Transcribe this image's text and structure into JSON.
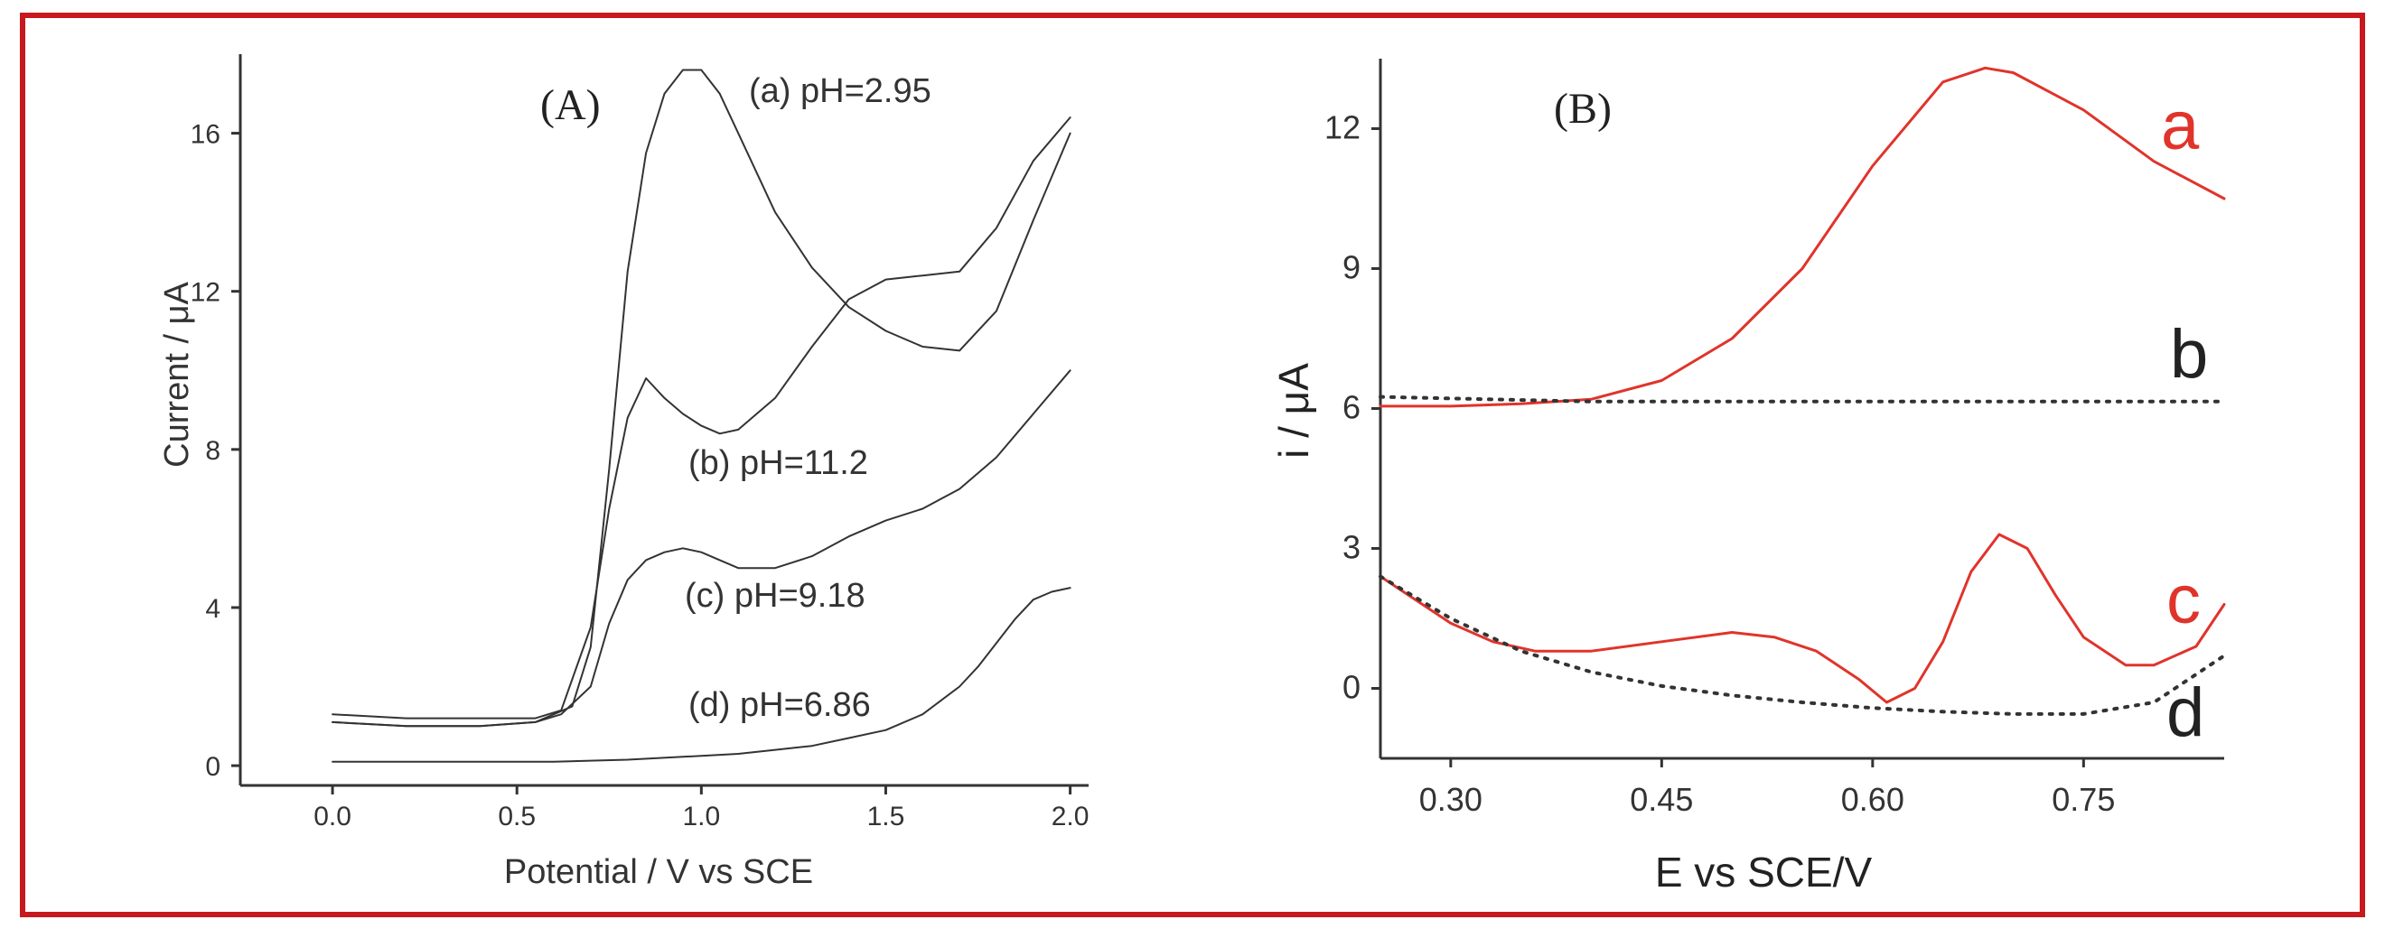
{
  "chart_data": [
    {
      "type": "line",
      "panel_label": "(A)",
      "xlabel": "Potential / V vs SCE",
      "ylabel": "Current / μA",
      "xlim": [
        -0.25,
        2.05
      ],
      "ylim": [
        -0.5,
        18
      ],
      "xticks": [
        "0.0",
        "0.5",
        "1.0",
        "1.5",
        "2.0"
      ],
      "yticks": [
        "0",
        "4",
        "8",
        "12",
        "16"
      ],
      "series": [
        {
          "name": "(a) pH=2.95",
          "color": "#333333",
          "style": "solid",
          "x": [
            0.0,
            0.2,
            0.4,
            0.55,
            0.65,
            0.7,
            0.75,
            0.8,
            0.85,
            0.9,
            0.95,
            1.0,
            1.05,
            1.1,
            1.2,
            1.3,
            1.4,
            1.5,
            1.6,
            1.7,
            1.8,
            1.9,
            2.0
          ],
          "y": [
            1.1,
            1.0,
            1.0,
            1.1,
            1.5,
            3.0,
            7.5,
            12.5,
            15.5,
            17.0,
            17.6,
            17.6,
            17.0,
            16.0,
            14.0,
            12.6,
            11.6,
            11.0,
            10.6,
            10.5,
            11.5,
            13.8,
            16.0
          ]
        },
        {
          "name": "(b) pH=11.2",
          "color": "#333333",
          "style": "solid",
          "x": [
            0.0,
            0.2,
            0.4,
            0.55,
            0.62,
            0.7,
            0.75,
            0.8,
            0.85,
            0.9,
            0.95,
            1.0,
            1.05,
            1.1,
            1.2,
            1.3,
            1.4,
            1.5,
            1.6,
            1.7,
            1.8,
            1.9,
            2.0
          ],
          "y": [
            1.3,
            1.2,
            1.2,
            1.2,
            1.4,
            3.5,
            6.5,
            8.8,
            9.8,
            9.3,
            8.9,
            8.6,
            8.4,
            8.5,
            9.3,
            10.6,
            11.8,
            12.3,
            12.4,
            12.5,
            13.6,
            15.3,
            16.4
          ]
        },
        {
          "name": "(c) pH=9.18",
          "color": "#333333",
          "style": "solid",
          "x": [
            0.0,
            0.2,
            0.4,
            0.55,
            0.62,
            0.7,
            0.75,
            0.8,
            0.85,
            0.9,
            0.95,
            1.0,
            1.05,
            1.1,
            1.2,
            1.3,
            1.4,
            1.5,
            1.6,
            1.7,
            1.8,
            1.9,
            2.0
          ],
          "y": [
            1.1,
            1.0,
            1.0,
            1.1,
            1.3,
            2.0,
            3.6,
            4.7,
            5.2,
            5.4,
            5.5,
            5.4,
            5.2,
            5.0,
            5.0,
            5.3,
            5.8,
            6.2,
            6.5,
            7.0,
            7.8,
            8.9,
            10.0
          ]
        },
        {
          "name": "(d) pH=6.86",
          "color": "#333333",
          "style": "solid",
          "x": [
            0.0,
            0.2,
            0.4,
            0.6,
            0.8,
            1.0,
            1.1,
            1.2,
            1.3,
            1.4,
            1.5,
            1.6,
            1.7,
            1.75,
            1.8,
            1.85,
            1.9,
            1.95,
            2.0
          ],
          "y": [
            0.1,
            0.1,
            0.1,
            0.1,
            0.15,
            0.25,
            0.3,
            0.4,
            0.5,
            0.7,
            0.9,
            1.3,
            2.0,
            2.5,
            3.1,
            3.7,
            4.2,
            4.4,
            4.5
          ]
        }
      ]
    },
    {
      "type": "line",
      "panel_label": "(B)",
      "xlabel": "E vs SCE/V",
      "ylabel": "i / μA",
      "xlim": [
        0.25,
        0.85
      ],
      "ylim": [
        -1.5,
        13.5
      ],
      "xticks": [
        "0.30",
        "0.45",
        "0.60",
        "0.75"
      ],
      "yticks": [
        "0",
        "3",
        "6",
        "9",
        "12"
      ],
      "series": [
        {
          "name": "a",
          "color": "#e0342b",
          "style": "solid",
          "x": [
            0.25,
            0.3,
            0.35,
            0.4,
            0.45,
            0.5,
            0.55,
            0.6,
            0.65,
            0.68,
            0.7,
            0.75,
            0.8,
            0.85
          ],
          "y": [
            6.05,
            6.05,
            6.1,
            6.2,
            6.6,
            7.5,
            9.0,
            11.2,
            13.0,
            13.3,
            13.2,
            12.4,
            11.3,
            10.5
          ]
        },
        {
          "name": "b",
          "color": "#333333",
          "style": "dotted",
          "x": [
            0.25,
            0.4,
            0.55,
            0.7,
            0.85
          ],
          "y": [
            6.25,
            6.15,
            6.15,
            6.15,
            6.15
          ]
        },
        {
          "name": "c",
          "color": "#e0342b",
          "style": "solid",
          "x": [
            0.25,
            0.27,
            0.3,
            0.33,
            0.36,
            0.4,
            0.45,
            0.5,
            0.53,
            0.56,
            0.59,
            0.61,
            0.63,
            0.65,
            0.67,
            0.69,
            0.71,
            0.73,
            0.75,
            0.78,
            0.8,
            0.83,
            0.85
          ],
          "y": [
            2.4,
            2.0,
            1.4,
            1.0,
            0.8,
            0.8,
            1.0,
            1.2,
            1.1,
            0.8,
            0.2,
            -0.3,
            0.0,
            1.0,
            2.5,
            3.3,
            3.0,
            2.0,
            1.1,
            0.5,
            0.5,
            0.9,
            1.8
          ]
        },
        {
          "name": "d",
          "color": "#333333",
          "style": "dotted",
          "x": [
            0.25,
            0.3,
            0.35,
            0.4,
            0.45,
            0.5,
            0.55,
            0.6,
            0.65,
            0.7,
            0.75,
            0.8,
            0.85
          ],
          "y": [
            2.4,
            1.5,
            0.8,
            0.35,
            0.05,
            -0.15,
            -0.3,
            -0.42,
            -0.5,
            -0.55,
            -0.55,
            -0.3,
            0.7
          ]
        }
      ]
    }
  ],
  "colors": {
    "frame": "#c8191e",
    "red": "#e0342b",
    "gray": "#333333"
  }
}
